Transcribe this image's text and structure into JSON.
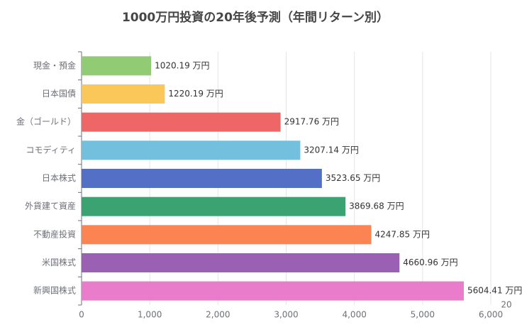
{
  "chart_data": {
    "type": "bar",
    "orientation": "horizontal",
    "title": "1000万円投資の20年後予測（年間リターン別）",
    "categories": [
      "現金・預金",
      "日本国債",
      "金（ゴールド）",
      "コモディティ",
      "日本株式",
      "外貨建て資産",
      "不動産投資",
      "米国株式",
      "新興国株式"
    ],
    "values": [
      1020.19,
      1220.19,
      2917.76,
      3207.14,
      3523.65,
      3869.68,
      4247.85,
      4660.96,
      5604.41
    ],
    "value_labels": [
      "1020.19 万円",
      "1220.19 万円",
      "2917.76 万円",
      "3207.14 万円",
      "3523.65 万円",
      "3869.68 万円",
      "4247.85 万円",
      "4660.96 万円",
      "5604.41 万円"
    ],
    "colors": [
      "#91cc75",
      "#fac858",
      "#ee6666",
      "#73c0de",
      "#5470c6",
      "#3ba272",
      "#fc8452",
      "#9a60b4",
      "#ea7ccc"
    ],
    "xlim": [
      0,
      6000
    ],
    "xticks": [
      0,
      {
        "value": 1000,
        "label": "1,000"
      },
      {
        "value": 2000,
        "label": "2,000"
      },
      {
        "value": 3000,
        "label": "3,000"
      },
      {
        "value": 4000,
        "label": "4,000"
      },
      {
        "value": 5000,
        "label": "5,000"
      },
      {
        "value": 6000,
        "label": "6,000"
      }
    ],
    "grid": true,
    "annotation": "20"
  }
}
